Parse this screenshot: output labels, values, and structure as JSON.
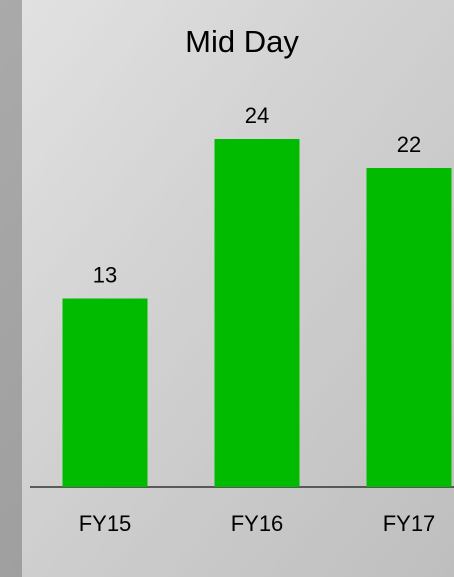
{
  "chart_data": {
    "type": "bar",
    "title": "Mid Day",
    "categories": [
      "FY15",
      "FY16",
      "FY17"
    ],
    "values": [
      13,
      24,
      22
    ],
    "color": "#00bb00"
  }
}
